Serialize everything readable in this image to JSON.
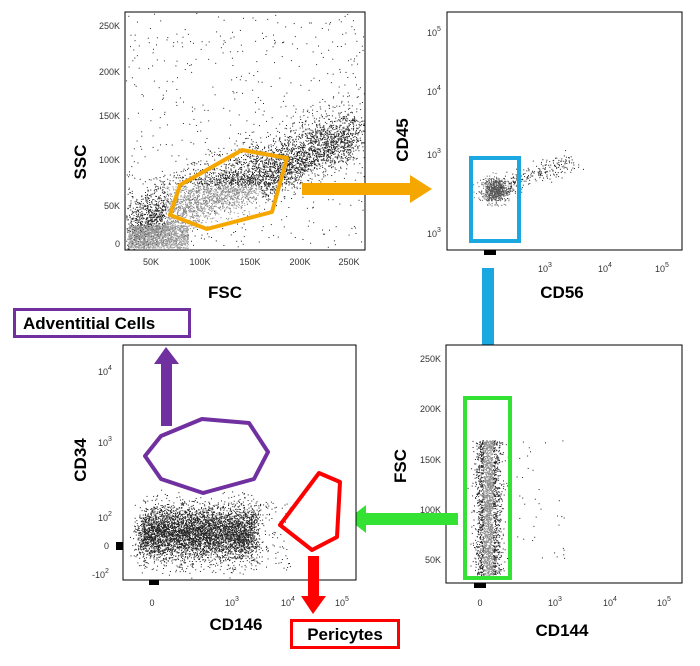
{
  "colors": {
    "gate_fsc_ssc": "#F5A700",
    "gate_cd45": "#1BA8E0",
    "gate_cd144": "#33E233",
    "gate_adventitial": "#7030A0",
    "gate_pericytes": "#FF0000",
    "dots": "#222222"
  },
  "chart_data": [
    {
      "id": "plot1",
      "type": "scatter",
      "xlabel": "FSC",
      "ylabel": "SSC",
      "x_ticks": [
        "50K",
        "100K",
        "150K",
        "200K",
        "250K"
      ],
      "y_ticks": [
        "0",
        "50K",
        "100K",
        "150K",
        "200K",
        "250K"
      ],
      "xlim": [
        20000,
        262000
      ],
      "ylim": [
        -5000,
        262000
      ],
      "gate": "polygon gate on main population (orange)"
    },
    {
      "id": "plot2",
      "type": "scatter",
      "xlabel": "CD56",
      "ylabel": "CD45",
      "x_ticks": [
        "10^3",
        "10^4",
        "10^5"
      ],
      "y_ticks": [
        "10^3",
        "10^3",
        "10^4",
        "10^5"
      ],
      "scale": "log",
      "gate": "rectangle gate on CD45-negative population (blue)"
    },
    {
      "id": "plot3",
      "type": "scatter",
      "xlabel": "CD144",
      "ylabel": "FSC",
      "x_ticks": [
        "0",
        "10^3",
        "10^4",
        "10^5"
      ],
      "y_ticks": [
        "50K",
        "100K",
        "150K",
        "200K",
        "250K"
      ],
      "gate": "rectangle gate on CD144-negative population (green)"
    },
    {
      "id": "plot4",
      "type": "scatter",
      "xlabel": "CD146",
      "ylabel": "CD34",
      "x_ticks": [
        "0",
        "10^3",
        "10^4",
        "10^5"
      ],
      "y_ticks": [
        "-10^2",
        "0",
        "10^2",
        "10^3",
        "10^4"
      ],
      "gates": [
        "CD34+ CD146- (purple)",
        "CD34- CD146+ (red)"
      ]
    }
  ],
  "labels": {
    "adventitial": "Adventitial Cells",
    "pericytes": "Pericytes"
  }
}
